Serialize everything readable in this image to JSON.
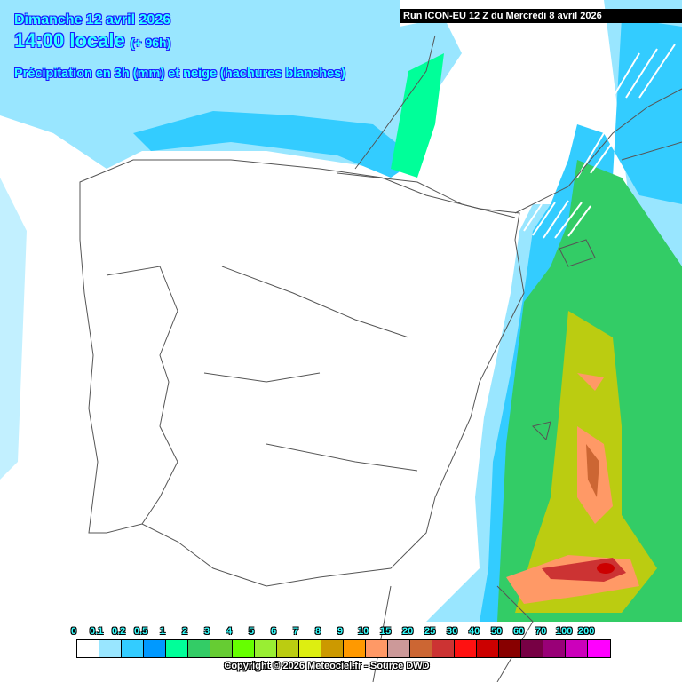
{
  "header": {
    "date": "Dimanche 12 avril 2026",
    "time": "14:00 locale",
    "offset": "(+ 96h)",
    "parameter": "Précipitation en 3h (mm) et neige (hachures blanches)",
    "run": "Run ICON-EU 12 Z du Mercredi 8 avril 2026"
  },
  "legend": {
    "labels": [
      "0",
      "0.1",
      "0.2",
      "0.5",
      "1",
      "2",
      "3",
      "4",
      "5",
      "6",
      "7",
      "8",
      "9",
      "10",
      "15",
      "20",
      "25",
      "30",
      "40",
      "50",
      "60",
      "70",
      "100",
      "200"
    ],
    "colors": [
      "#ffffff",
      "#99e6ff",
      "#33ccff",
      "#0099ff",
      "#00ff99",
      "#33cc66",
      "#66cc33",
      "#66ff00",
      "#99ee33",
      "#bbcc11",
      "#ddee11",
      "#cc9900",
      "#ff9900",
      "#ff9966",
      "#cc9999",
      "#cc6633",
      "#cc3333",
      "#ff1111",
      "#cc0000",
      "#880000",
      "#770044",
      "#990077",
      "#cc00bb",
      "#ff00ff"
    ]
  },
  "footer": {
    "copyright": "Copyright © 2026 Meteociel.fr - Source DWD"
  }
}
